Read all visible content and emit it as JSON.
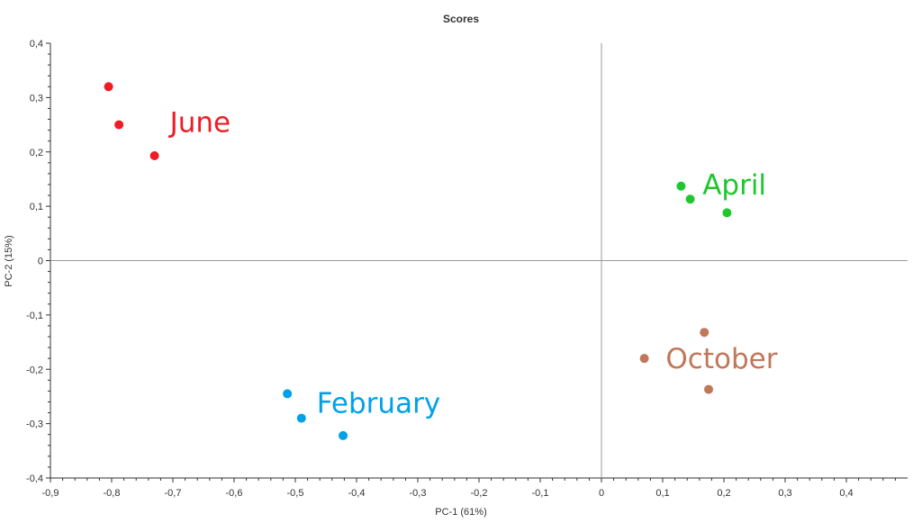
{
  "chart_data": {
    "type": "scatter",
    "title": "Scores",
    "xlabel": "PC-1 (61%)",
    "ylabel": "PC-2 (15%)",
    "xlim": [
      -0.9,
      0.5
    ],
    "ylim": [
      -0.4,
      0.4
    ],
    "x_ticks": [
      "-0,9",
      "-0,8",
      "-0,7",
      "-0,6",
      "-0,5",
      "-0,4",
      "-0,3",
      "-0,2",
      "-0,1",
      "0",
      "0,1",
      "0,2",
      "0,3",
      "0,4"
    ],
    "y_ticks": [
      "0,4",
      "0,3",
      "0,2",
      "0,1",
      "0",
      "-0,1",
      "-0,2",
      "-0,3",
      "-0,4"
    ],
    "grid": false,
    "legend": "none",
    "series": [
      {
        "name": "June",
        "color": "#ee1c25",
        "x": [
          -0.805,
          -0.788,
          -0.73
        ],
        "y": [
          0.32,
          0.25,
          0.193
        ]
      },
      {
        "name": "April",
        "color": "#1ec72e",
        "x": [
          0.13,
          0.145,
          0.205
        ],
        "y": [
          0.137,
          0.113,
          0.088
        ]
      },
      {
        "name": "October",
        "color": "#c0775a",
        "x": [
          0.07,
          0.168,
          0.175
        ],
        "y": [
          -0.18,
          -0.132,
          -0.237
        ]
      },
      {
        "name": "February",
        "color": "#00a1e9",
        "x": [
          -0.513,
          -0.49,
          -0.422
        ],
        "y": [
          -0.245,
          -0.29,
          -0.322
        ]
      }
    ]
  }
}
